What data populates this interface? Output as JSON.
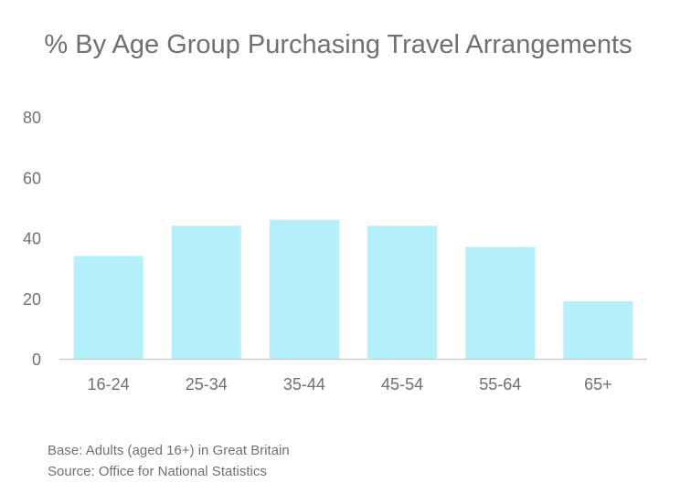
{
  "chart_data": {
    "type": "bar",
    "title": "% By Age Group Purchasing Travel Arrangements",
    "categories": [
      "16-24",
      "25-34",
      "35-44",
      "45-54",
      "55-64",
      "65+"
    ],
    "values": [
      34,
      44,
      46,
      44,
      37,
      19
    ],
    "ylim": [
      0,
      80
    ],
    "yticks": [
      0,
      20,
      40,
      60,
      80
    ],
    "xlabel": "",
    "ylabel": "",
    "grid": false,
    "bar_color": "#b4f0fc",
    "axis_color": "#cfcfcf"
  },
  "notes": {
    "base": "Base: Adults (aged 16+) in Great Britain",
    "source": "Source: Office for National Statistics"
  }
}
